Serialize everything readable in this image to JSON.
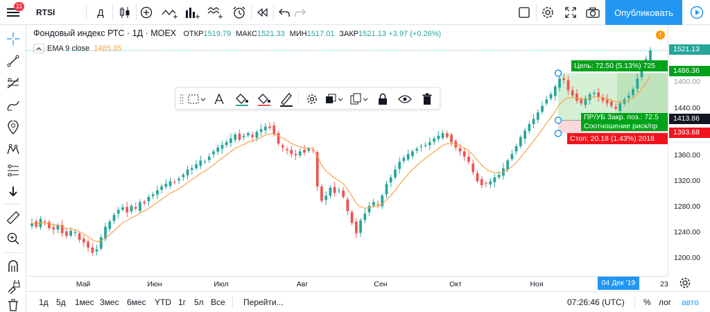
{
  "topbar": {
    "symbol": "RTSI",
    "interval": "Д",
    "publish_label": "Опубликовать",
    "notif_count": "11"
  },
  "legend": {
    "title": "Фондовый индекс РТС · 1Д · MOEX",
    "open_label": "ОТКР",
    "open_value": "1519.79",
    "high_label": "МАКС",
    "high_value": "1521.33",
    "low_label": "МИН",
    "low_value": "1517.01",
    "close_label": "ЗАКР",
    "close_value": "1521.13",
    "change": "+3.97 (+0.26%)",
    "indicator_name": "EMA 9 close",
    "indicator_value": "1485.35",
    "alert_badge": "!"
  },
  "colors": {
    "up": "#26a69a",
    "down": "#ef5350",
    "ema": "#f7a348",
    "accent": "#2196f3",
    "target_zone": "#cdeccd",
    "stop_zone": "#f7d4d4",
    "target_label_bg": "#00a21a",
    "stop_label_bg": "#f0141e"
  },
  "price_axis": {
    "ticks": [
      "1400.00",
      "1360.00",
      "1320.00",
      "1280.00",
      "1240.00",
      "1200.00"
    ],
    "tick_values": [
      1400,
      1360,
      1320,
      1280,
      1240,
      1200
    ],
    "fixed_tick": "1440.00",
    "last_price": "1521.13",
    "target_price": "1486.36",
    "entry_price": "1413.86",
    "stop_price": "1393.68"
  },
  "position": {
    "target_label": "Цель: 72.50 (5.13%) 725",
    "entry_label_1": "ПР/УБ Закр. поз.: 72.5",
    "entry_label_2": "Соотношение риск/пр",
    "stop_label": "Стоп: 20.18 (1.43%) 2018"
  },
  "time_axis": {
    "labels": [
      "Май",
      "Июн",
      "Июл",
      "Авг",
      "Сен",
      "Окт",
      "Ноя"
    ],
    "last_label": "23",
    "crosshair_date": "04 Дек '19"
  },
  "bottombar": {
    "ranges": [
      "1д",
      "5д",
      "1мес",
      "3мес",
      "6мес",
      "YTD",
      "1г",
      "5л",
      "Все"
    ],
    "goto_label": "Перейти...",
    "clock": "07:26:46 (UTC)",
    "percent": "%",
    "log": "лог",
    "auto": "авто"
  },
  "icons": {
    "top": [
      "menu-icon",
      "candles-icon",
      "add-compare-icon",
      "indicators-icon",
      "bar-chart-type-icon",
      "alert-clock-icon",
      "replay-icon",
      "undo-icon",
      "redo-icon",
      "layout-icon",
      "settings-gear-icon",
      "fullscreen-icon",
      "camera-icon",
      "play-icon"
    ],
    "left": [
      "crosshair-icon",
      "trend-line-icon",
      "fib-icon",
      "brush-icon",
      "pin-icon",
      "pattern-icon",
      "position-icon",
      "arrow-down-icon",
      "ruler-icon",
      "zoom-icon",
      "magnet-icon",
      "lock-drawings-icon",
      "trash-icon"
    ]
  },
  "chart_data": {
    "type": "candlestick",
    "symbol": "RTSI",
    "series": [
      {
        "name": "RTSI",
        "close": [
          1255,
          1250,
          1262,
          1258,
          1248,
          1246,
          1252,
          1240,
          1236,
          1244,
          1242,
          1230,
          1226,
          1218,
          1210,
          1215,
          1234,
          1250,
          1258,
          1268,
          1276,
          1280,
          1272,
          1282,
          1278,
          1288,
          1286,
          1296,
          1300,
          1306,
          1312,
          1316,
          1320,
          1318,
          1324,
          1330,
          1338,
          1340,
          1346,
          1352,
          1350,
          1358,
          1366,
          1372,
          1376,
          1380,
          1386,
          1392,
          1384,
          1390,
          1394,
          1388,
          1396,
          1400,
          1404,
          1402,
          1392,
          1378,
          1372,
          1368,
          1362,
          1360,
          1366,
          1364,
          1370,
          1368,
          1312,
          1290,
          1298,
          1310,
          1302,
          1306,
          1296,
          1274,
          1256,
          1240,
          1260,
          1270,
          1282,
          1288,
          1284,
          1298,
          1316,
          1326,
          1338,
          1350,
          1356,
          1362,
          1366,
          1370,
          1374,
          1376,
          1380,
          1386,
          1390,
          1394,
          1388,
          1380,
          1372,
          1366,
          1358,
          1350,
          1334,
          1320,
          1314,
          1316,
          1320,
          1326,
          1330,
          1340,
          1352,
          1362,
          1374,
          1388,
          1398,
          1408,
          1416,
          1426,
          1436,
          1446,
          1454,
          1466,
          1478,
          1476,
          1460,
          1452,
          1444,
          1440,
          1448,
          1454,
          1456,
          1450,
          1444,
          1440,
          1436,
          1432,
          1440,
          1446,
          1452,
          1462,
          1478,
          1496,
          1508,
          1521.13
        ]
      },
      {
        "name": "EMA 9 close",
        "last": 1485.35
      }
    ],
    "ylim": [
      1190,
      1525
    ],
    "x_labels": [
      "Май",
      "Июн",
      "Июл",
      "Авг",
      "Сен",
      "Окт",
      "Ноя"
    ],
    "grid": false
  }
}
